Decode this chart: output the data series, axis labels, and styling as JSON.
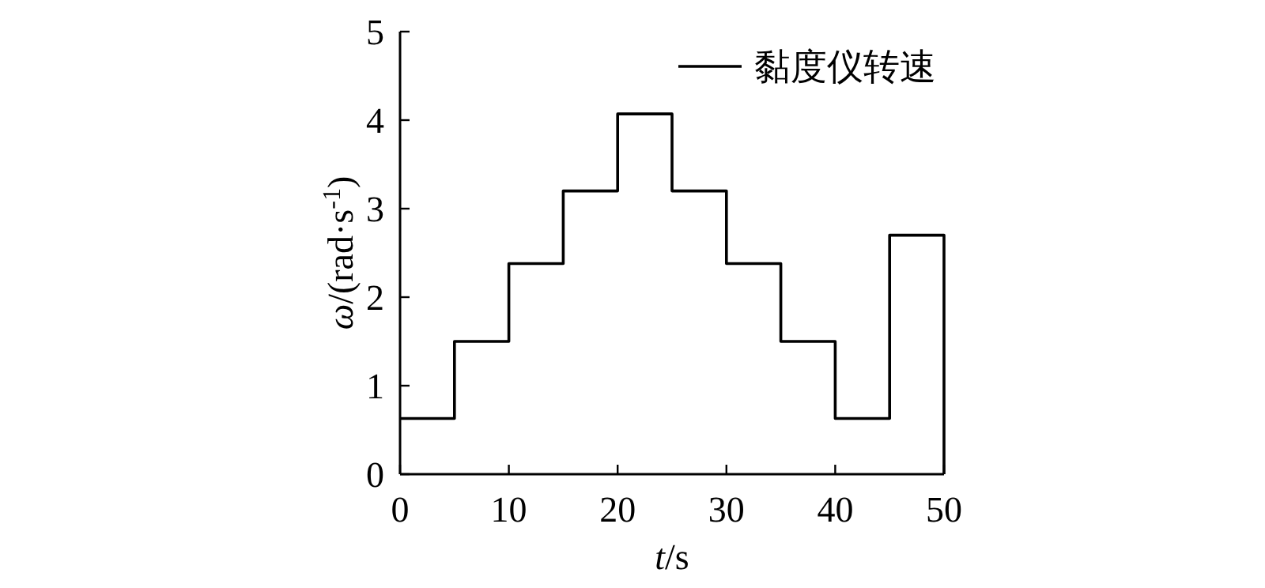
{
  "chart_data": {
    "type": "step",
    "xlabel": "*t*/s",
    "ylabel": "*ω*/(rad·s$^{-1}$)",
    "x": [
      0,
      5,
      10,
      15,
      20,
      25,
      30,
      35,
      40,
      45,
      50,
      50
    ],
    "series": [
      {
        "name": "黏度仪转速",
        "color": "#000000",
        "values": [
          0.63,
          1.5,
          2.38,
          3.2,
          4.07,
          3.2,
          2.38,
          1.5,
          0.63,
          2.7,
          2.7,
          0
        ]
      }
    ],
    "xlim": [
      0,
      50
    ],
    "xticks": [
      0,
      10,
      20,
      30,
      40,
      50
    ],
    "ylim": [
      0,
      5
    ],
    "yticks": [
      0,
      1,
      2,
      3,
      4,
      5
    ],
    "legend": "top right",
    "grid": false
  }
}
